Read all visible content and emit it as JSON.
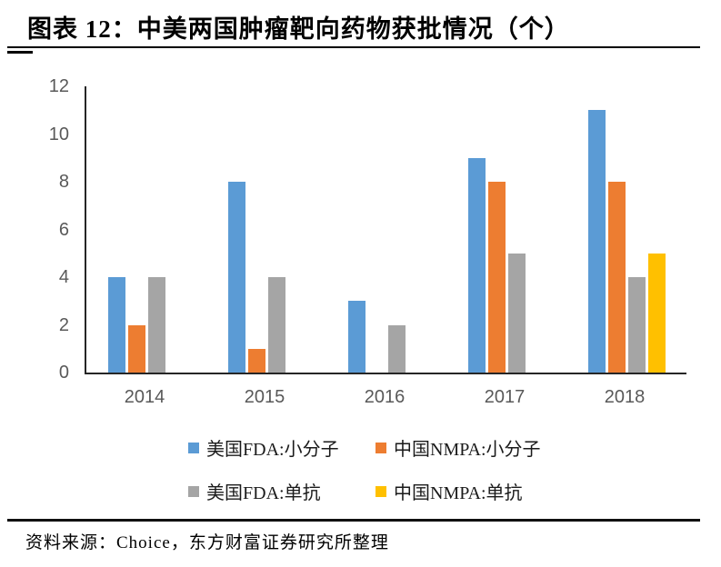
{
  "header": {
    "title": "图表 12：中美两国肿瘤靶向药物获批情况（个）"
  },
  "chart_data": {
    "type": "bar",
    "title": "中美两国肿瘤靶向药物获批情况（个）",
    "categories": [
      "2014",
      "2015",
      "2016",
      "2017",
      "2018"
    ],
    "series": [
      {
        "name": "美国FDA:小分子",
        "color": "#5B9BD5",
        "values": [
          4,
          8,
          3,
          9,
          11
        ]
      },
      {
        "name": "中国NMPA:小分子",
        "color": "#ED7D31",
        "values": [
          2,
          1,
          0,
          8,
          8
        ]
      },
      {
        "name": "美国FDA:单抗",
        "color": "#A5A5A5",
        "values": [
          4,
          4,
          2,
          5,
          4
        ]
      },
      {
        "name": "中国NMPA:单抗",
        "color": "#FFC000",
        "values": [
          0,
          0,
          0,
          0,
          5
        ]
      }
    ],
    "ylim": [
      0,
      12
    ],
    "yticks": [
      0,
      2,
      4,
      6,
      8,
      10,
      12
    ],
    "grid": false,
    "legend_position": "bottom"
  },
  "footer": {
    "source": "资料来源：Choice，东方财富证券研究所整理"
  },
  "colors": {
    "axis": "#262626",
    "tick_text": "#595959"
  }
}
